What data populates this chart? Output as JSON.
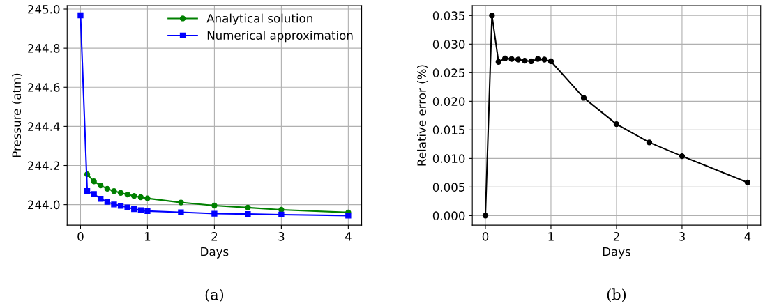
{
  "chart_data": [
    {
      "type": "line",
      "xlabel": "Days",
      "ylabel": "Pressure (atm)",
      "annotations": [
        "(a)"
      ],
      "x": [
        0,
        0.1,
        0.2,
        0.3,
        0.4,
        0.5,
        0.6,
        0.7,
        0.8,
        0.9,
        1.0,
        1.5,
        2,
        2.5,
        3,
        4
      ],
      "series": [
        {
          "name": "Analytical solution",
          "color": "#008000",
          "marker": "circle",
          "values": [
            null,
            244.155,
            244.119,
            244.098,
            244.081,
            244.069,
            244.06,
            244.052,
            244.044,
            244.038,
            244.032,
            244.011,
            243.995,
            243.985,
            243.974,
            243.96
          ]
        },
        {
          "name": "Numerical approximation",
          "color": "#0000ff",
          "marker": "square",
          "values": [
            244.968,
            244.069,
            244.054,
            244.03,
            244.014,
            244.001,
            243.994,
            243.986,
            243.977,
            243.971,
            243.967,
            243.961,
            243.954,
            243.952,
            243.949,
            243.944
          ]
        }
      ],
      "xlim": [
        -0.2,
        4.2
      ],
      "xticks": [
        0,
        1,
        2,
        3,
        4
      ],
      "ylim": [
        243.895,
        245.018
      ],
      "yticks": [
        {
          "value": 244.0,
          "label": "244.0"
        },
        {
          "value": 244.2,
          "label": "244.2"
        },
        {
          "value": 244.4,
          "label": "244.4"
        },
        {
          "value": 244.6,
          "label": "244.6"
        },
        {
          "value": 244.8,
          "label": "244.8"
        },
        {
          "value": 245.0,
          "label": "245.0"
        }
      ],
      "grid": true,
      "legend": "top right",
      "line_style": "solid"
    },
    {
      "type": "line",
      "xlabel": "Days",
      "ylabel": "Relative error (%)",
      "annotations": [
        "(b)"
      ],
      "x": [
        0,
        0.1,
        0.2,
        0.3,
        0.4,
        0.5,
        0.6,
        0.7,
        0.8,
        0.9,
        1.0,
        1.5,
        2,
        2.5,
        3,
        4
      ],
      "series": [
        {
          "color": "#000000",
          "marker": "circle",
          "values": [
            0.0,
            0.035,
            0.0269,
            0.0275,
            0.0274,
            0.0273,
            0.0271,
            0.027,
            0.0274,
            0.0273,
            0.027,
            0.0206,
            0.016,
            0.0128,
            0.0104,
            0.0058
          ]
        }
      ],
      "xlim": [
        -0.2,
        4.2
      ],
      "xticks": [
        0,
        1,
        2,
        3,
        4
      ],
      "ylim": [
        -0.00167,
        0.03675
      ],
      "yticks": [
        {
          "value": 0.0,
          "label": "0.000"
        },
        {
          "value": 0.005,
          "label": "0.005"
        },
        {
          "value": 0.01,
          "label": "0.010"
        },
        {
          "value": 0.015,
          "label": "0.015"
        },
        {
          "value": 0.02,
          "label": "0.020"
        },
        {
          "value": 0.025,
          "label": "0.025"
        },
        {
          "value": 0.03,
          "label": "0.030"
        },
        {
          "value": 0.035,
          "label": "0.035"
        }
      ],
      "grid": true,
      "line_style": "solid"
    }
  ]
}
